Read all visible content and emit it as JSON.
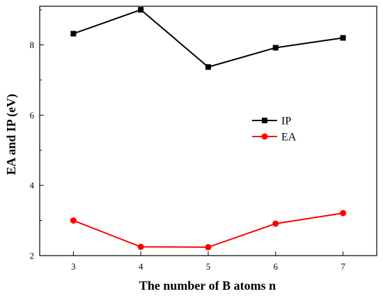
{
  "chart_data": {
    "type": "line",
    "title": "",
    "xlabel": "The number of B atoms n",
    "ylabel": "EA and IP (eV)",
    "xlim": [
      2.5,
      7.5
    ],
    "ylim": [
      2,
      9.1
    ],
    "xticks": [
      3,
      4,
      5,
      6,
      7
    ],
    "yticks": [
      2,
      4,
      6,
      8
    ],
    "grid": false,
    "legend_position": "center-right",
    "x": [
      3,
      4,
      5,
      6,
      7
    ],
    "series": [
      {
        "name": "IP",
        "values": [
          8.32,
          9.0,
          7.37,
          7.92,
          8.2
        ],
        "color": "#000000",
        "marker": "square"
      },
      {
        "name": "EA",
        "values": [
          3.0,
          2.25,
          2.24,
          2.91,
          3.21
        ],
        "color": "#ff0000",
        "marker": "circle"
      }
    ]
  }
}
